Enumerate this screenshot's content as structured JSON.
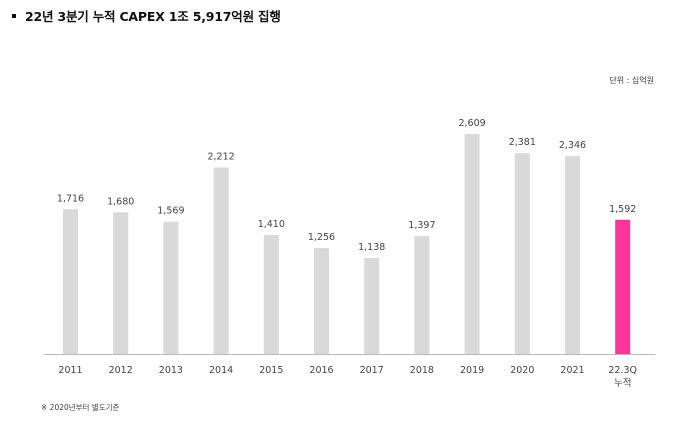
{
  "header": {
    "title": "22년 3분기 누적 CAPEX 1조 5,917억원 집행"
  },
  "unit_label": "단위 : 십억원",
  "footnote": "※ 2020년부터 별도기준",
  "colors": {
    "bar": "#d9d9d9",
    "highlight": "#ff3399",
    "axis": "#bbbbbb"
  },
  "chart_data": {
    "type": "bar",
    "title": "22년 3분기 누적 CAPEX 1조 5,917억원 집행",
    "xlabel": "",
    "ylabel": "",
    "unit": "단위 : 십억원",
    "categories": [
      "2011",
      "2012",
      "2013",
      "2014",
      "2015",
      "2016",
      "2017",
      "2018",
      "2019",
      "2020",
      "2021",
      "22.3Q 누적"
    ],
    "tick_lines": [
      [
        "2011"
      ],
      [
        "2012"
      ],
      [
        "2013"
      ],
      [
        "2014"
      ],
      [
        "2015"
      ],
      [
        "2016"
      ],
      [
        "2017"
      ],
      [
        "2018"
      ],
      [
        "2019"
      ],
      [
        "2020"
      ],
      [
        "2021"
      ],
      [
        "22.3Q",
        "누적"
      ]
    ],
    "values": [
      1716,
      1680,
      1569,
      2212,
      1410,
      1256,
      1138,
      1397,
      2609,
      2381,
      2346,
      1592
    ],
    "labels": [
      "1,716",
      "1,680",
      "1,569",
      "2,212",
      "1,410",
      "1,256",
      "1,138",
      "1,397",
      "2,609",
      "2,381",
      "2,346",
      "1,592"
    ],
    "highlight_index": 11,
    "ylim": [
      0,
      2609
    ],
    "grid": false,
    "legend": "none"
  }
}
